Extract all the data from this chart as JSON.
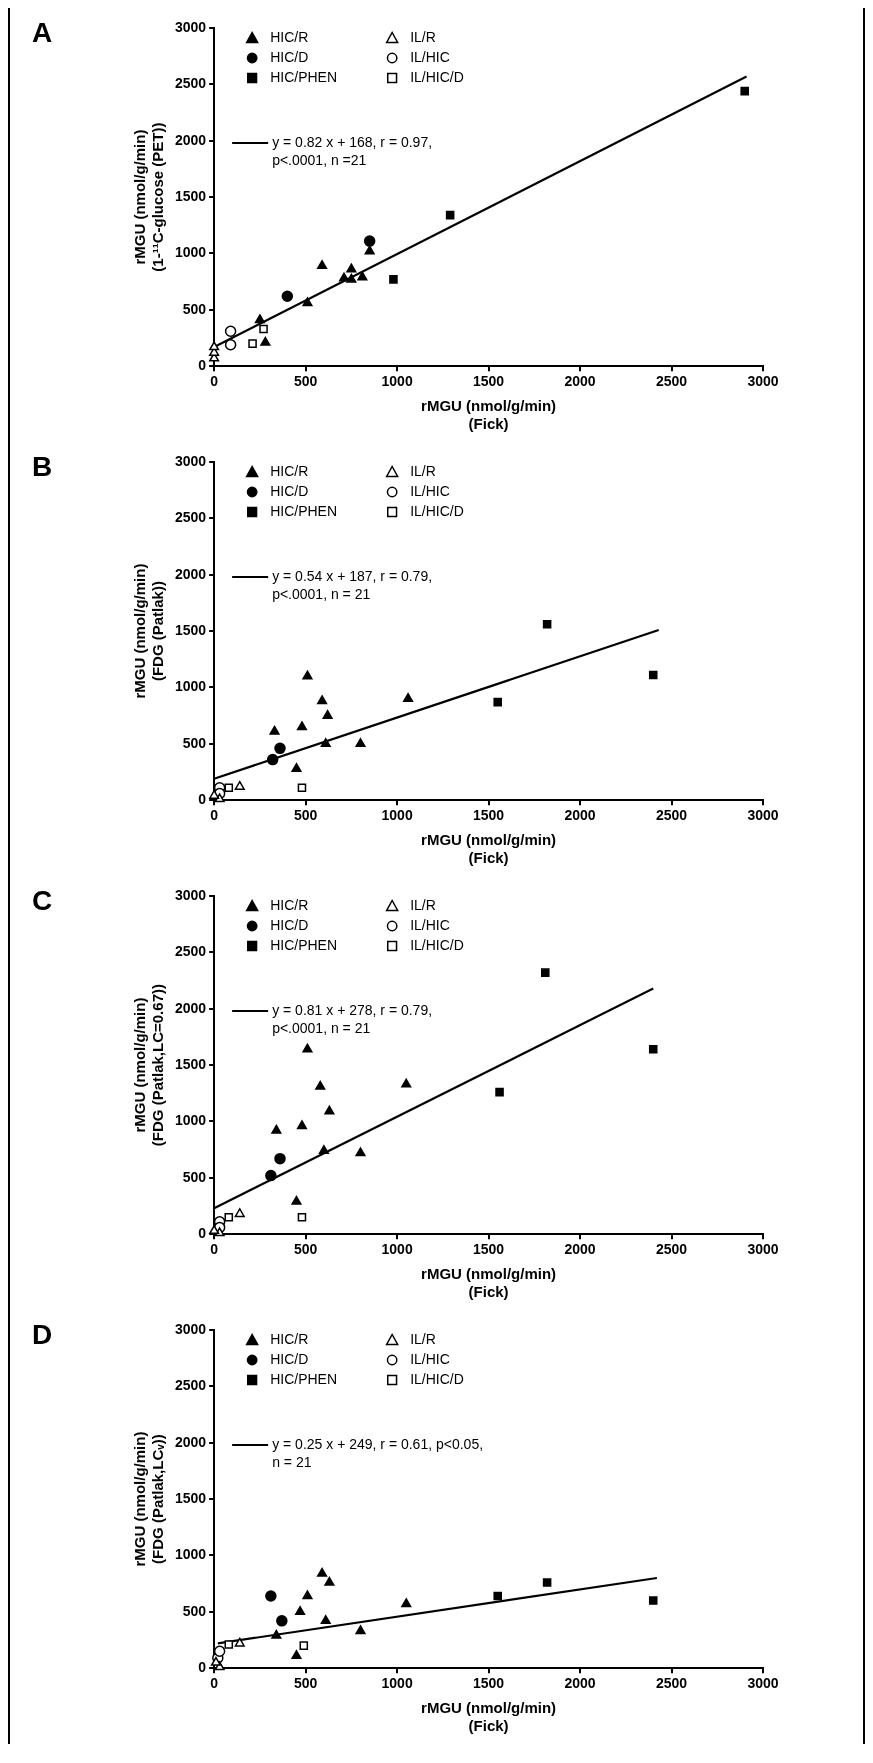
{
  "chart_data": [
    {
      "type": "scatter",
      "title": "A",
      "xlabel": "rMGU (nmol/g/min)\n(Fick)",
      "ylabel": "rMGU (nmol/g/min)\n(1-¹¹C-glucose (PET))",
      "xlim": [
        0,
        3000
      ],
      "ylim": [
        0,
        3000
      ],
      "xticks": [
        0,
        500,
        1000,
        1500,
        2000,
        2500,
        3000
      ],
      "yticks": [
        0,
        500,
        1000,
        1500,
        2000,
        2500,
        3000
      ],
      "legend": "top left",
      "series": [
        {
          "name": "HIC/R",
          "color": "#000000",
          "marker": "triangle",
          "x": [
            590,
            510,
            250,
            280,
            710,
            750,
            750,
            810,
            850
          ],
          "values": [
            890,
            560,
            410,
            210,
            780,
            770,
            860,
            790,
            1020
          ]
        },
        {
          "name": "HIC/D",
          "color": "#000000",
          "marker": "circle",
          "x": [
            400,
            850
          ],
          "values": [
            620,
            1110
          ]
        },
        {
          "name": "HIC/PHEN",
          "color": "#000000",
          "marker": "square",
          "x": [
            980,
            1290,
            2900
          ],
          "values": [
            770,
            1340,
            2440
          ]
        },
        {
          "name": "IL/R",
          "color": "#ffffff",
          "marker": "triangle",
          "x": [
            0,
            0,
            0
          ],
          "values": [
            70,
            120,
            170
          ]
        },
        {
          "name": "IL/HIC",
          "color": "#ffffff",
          "marker": "circle",
          "x": [
            90,
            90
          ],
          "values": [
            310,
            190
          ]
        },
        {
          "name": "IL/HIC/D",
          "color": "#ffffff",
          "marker": "square",
          "x": [
            210,
            270
          ],
          "values": [
            200,
            330
          ]
        },
        {
          "name": "y = 0.82 x + 168, r = 0.97, p<.0001, n =21",
          "type": "line",
          "color": "#000000",
          "marker": "none",
          "line_style": "solid",
          "x": [
            0,
            2910
          ],
          "values": [
            170,
            2570
          ]
        }
      ]
    },
    {
      "type": "scatter",
      "title": "B",
      "xlabel": "rMGU (nmol/g/min)\n(Fick)",
      "ylabel": "rMGU (nmol/g/min)\n(FDG (Patlak))",
      "xlim": [
        0,
        3000
      ],
      "ylim": [
        0,
        3000
      ],
      "xticks": [
        0,
        500,
        1000,
        1500,
        2000,
        2500,
        3000
      ],
      "yticks": [
        0,
        500,
        1000,
        1500,
        2000,
        2500,
        3000
      ],
      "legend": "top left",
      "series": [
        {
          "name": "HIC/R",
          "color": "#000000",
          "marker": "triangle",
          "x": [
            330,
            480,
            510,
            590,
            620,
            610,
            450,
            800,
            1060
          ],
          "values": [
            610,
            650,
            1100,
            880,
            750,
            500,
            280,
            500,
            900
          ]
        },
        {
          "name": "HIC/D",
          "color": "#000000",
          "marker": "circle",
          "x": [
            320,
            360
          ],
          "values": [
            360,
            460
          ]
        },
        {
          "name": "HIC/PHEN",
          "color": "#000000",
          "marker": "square",
          "x": [
            1550,
            1820,
            2400
          ],
          "values": [
            870,
            1560,
            1110
          ]
        },
        {
          "name": "IL/R",
          "color": "#ffffff",
          "marker": "triangle",
          "x": [
            30,
            140,
            0
          ],
          "values": [
            10,
            120,
            40
          ]
        },
        {
          "name": "IL/HIC",
          "color": "#ffffff",
          "marker": "circle",
          "x": [
            30,
            30
          ],
          "values": [
            110,
            60
          ]
        },
        {
          "name": "IL/HIC/D",
          "color": "#ffffff",
          "marker": "square",
          "x": [
            80,
            480
          ],
          "values": [
            110,
            110
          ]
        },
        {
          "name": "y = 0.54 x + 187, r = 0.79, p<.0001, n = 21",
          "type": "line",
          "color": "#000000",
          "marker": "none",
          "line_style": "solid",
          "x": [
            0,
            2430
          ],
          "values": [
            190,
            1510
          ]
        }
      ]
    },
    {
      "type": "scatter",
      "title": "C",
      "xlabel": "rMGU (nmol/g/min)\n(Fick)",
      "ylabel": "rMGU (nmol/g/min)\n(FDG (Patlak,LC=0.67))",
      "xlim": [
        0,
        3000
      ],
      "ylim": [
        0,
        3000
      ],
      "xticks": [
        0,
        500,
        1000,
        1500,
        2000,
        2500,
        3000
      ],
      "yticks": [
        0,
        500,
        1000,
        1500,
        2000,
        2500,
        3000
      ],
      "legend": "top left",
      "series": [
        {
          "name": "HIC/R",
          "color": "#000000",
          "marker": "triangle",
          "x": [
            340,
            480,
            510,
            580,
            630,
            600,
            450,
            800,
            1050
          ],
          "values": [
            920,
            960,
            1640,
            1310,
            1090,
            740,
            290,
            720,
            1330
          ]
        },
        {
          "name": "HIC/D",
          "color": "#000000",
          "marker": "circle",
          "x": [
            310,
            360
          ],
          "values": [
            520,
            670
          ]
        },
        {
          "name": "HIC/PHEN",
          "color": "#000000",
          "marker": "square",
          "x": [
            1560,
            1810,
            2400
          ],
          "values": [
            1260,
            2320,
            1640
          ]
        },
        {
          "name": "IL/R",
          "color": "#ffffff",
          "marker": "triangle",
          "x": [
            140,
            30,
            0
          ],
          "values": [
            180,
            10,
            30
          ]
        },
        {
          "name": "IL/HIC",
          "color": "#ffffff",
          "marker": "circle",
          "x": [
            30,
            30
          ],
          "values": [
            110,
            60
          ]
        },
        {
          "name": "IL/HIC/D",
          "color": "#ffffff",
          "marker": "square",
          "x": [
            80,
            480
          ],
          "values": [
            150,
            150
          ]
        },
        {
          "name": "y = 0.81 x + 278, r = 0.79, p<.0001, n = 21",
          "type": "line",
          "color": "#000000",
          "marker": "none",
          "line_style": "solid",
          "x": [
            0,
            2400
          ],
          "values": [
            230,
            2180
          ]
        }
      ]
    },
    {
      "type": "scatter",
      "title": "D",
      "xlabel": "rMGU (nmol/g/min)\n(Fick)",
      "ylabel": "rMGU (nmol/g/min)\n(FDG (Patlak,LCᵥ))",
      "xlim": [
        0,
        3000
      ],
      "ylim": [
        0,
        3000
      ],
      "xticks": [
        0,
        500,
        1000,
        1500,
        2000,
        2500,
        3000
      ],
      "yticks": [
        0,
        500,
        1000,
        1500,
        2000,
        2500,
        3000
      ],
      "legend": "top left",
      "series": [
        {
          "name": "HIC/R",
          "color": "#000000",
          "marker": "triangle",
          "x": [
            590,
            630,
            510,
            470,
            610,
            340,
            450,
            800,
            1050
          ],
          "values": [
            840,
            760,
            640,
            500,
            420,
            290,
            110,
            330,
            570
          ]
        },
        {
          "name": "HIC/D",
          "color": "#000000",
          "marker": "circle",
          "x": [
            310,
            370
          ],
          "values": [
            640,
            420
          ]
        },
        {
          "name": "HIC/PHEN",
          "color": "#000000",
          "marker": "square",
          "x": [
            1550,
            1820,
            2400
          ],
          "values": [
            640,
            760,
            600
          ]
        },
        {
          "name": "IL/R",
          "color": "#ffffff",
          "marker": "triangle",
          "x": [
            140,
            30,
            10
          ],
          "values": [
            220,
            10,
            50
          ]
        },
        {
          "name": "IL/HIC",
          "color": "#ffffff",
          "marker": "circle",
          "x": [
            20,
            30
          ],
          "values": [
            90,
            150
          ]
        },
        {
          "name": "IL/HIC/D",
          "color": "#ffffff",
          "marker": "square",
          "x": [
            80,
            490
          ],
          "values": [
            210,
            200
          ]
        },
        {
          "name": "y = 0.25 x + 249, r = 0.61, p<0.05, n = 21",
          "type": "line",
          "color": "#000000",
          "marker": "none",
          "line_style": "solid",
          "x": [
            20,
            2420
          ],
          "values": [
            220,
            800
          ]
        }
      ]
    }
  ]
}
